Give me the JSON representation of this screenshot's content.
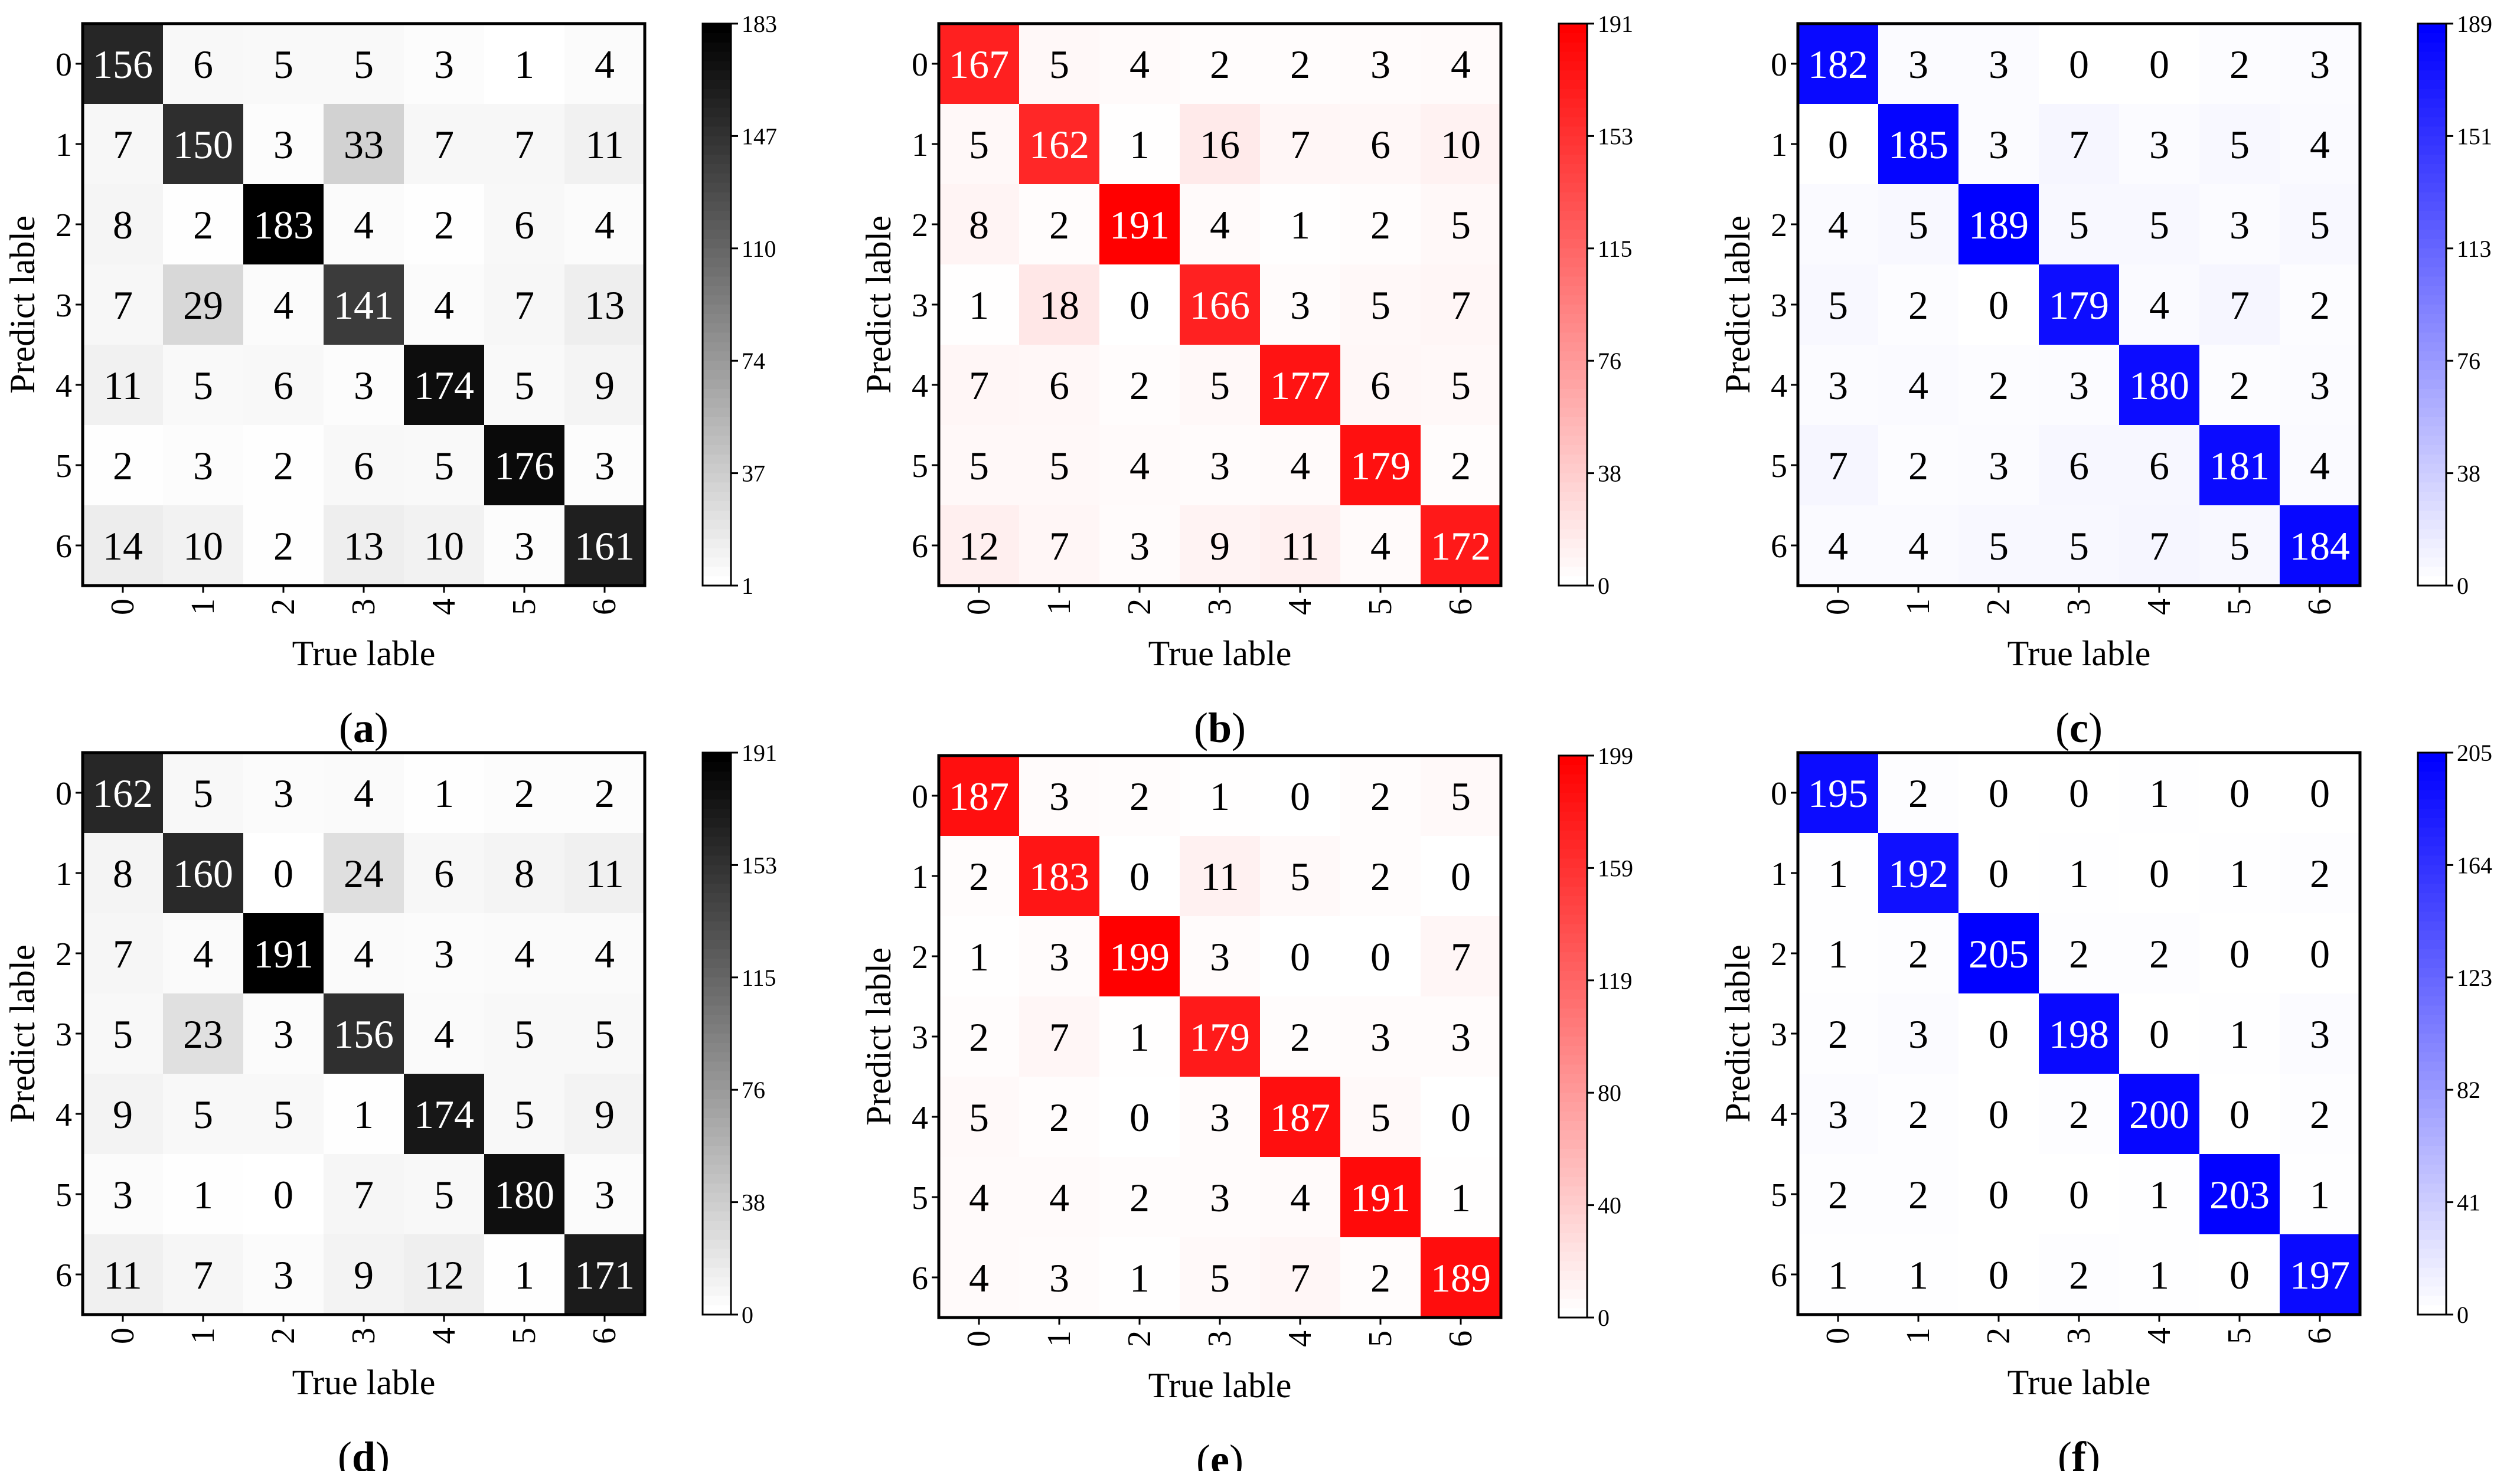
{
  "chart_data": [
    {
      "type": "heatmap",
      "panel": "a",
      "colormap": "gray",
      "accent": "#000000",
      "xlabel": "True lable",
      "ylabel": "Predict lable",
      "categories": [
        "0",
        "1",
        "2",
        "3",
        "4",
        "5",
        "6"
      ],
      "colorbar_ticks": [
        "183",
        "147",
        "110",
        "74",
        "37",
        "1"
      ],
      "vmin": 1,
      "vmax": 183,
      "matrix": [
        [
          156,
          6,
          5,
          5,
          3,
          1,
          4
        ],
        [
          7,
          150,
          3,
          33,
          7,
          7,
          11
        ],
        [
          8,
          2,
          183,
          4,
          2,
          6,
          4
        ],
        [
          7,
          29,
          4,
          141,
          4,
          7,
          13
        ],
        [
          11,
          5,
          6,
          3,
          174,
          5,
          9
        ],
        [
          2,
          3,
          2,
          6,
          5,
          176,
          3
        ],
        [
          14,
          10,
          2,
          13,
          10,
          3,
          161
        ]
      ]
    },
    {
      "type": "heatmap",
      "panel": "b",
      "colormap": "red",
      "accent": "#ff0000",
      "xlabel": "True lable",
      "ylabel": "Predict lable",
      "categories": [
        "0",
        "1",
        "2",
        "3",
        "4",
        "5",
        "6"
      ],
      "colorbar_ticks": [
        "191",
        "153",
        "115",
        "76",
        "38",
        "0"
      ],
      "vmin": 0,
      "vmax": 191,
      "matrix": [
        [
          167,
          5,
          4,
          2,
          2,
          3,
          4
        ],
        [
          5,
          162,
          1,
          16,
          7,
          6,
          10
        ],
        [
          8,
          2,
          191,
          4,
          1,
          2,
          5
        ],
        [
          1,
          18,
          0,
          166,
          3,
          5,
          7
        ],
        [
          7,
          6,
          2,
          5,
          177,
          6,
          5
        ],
        [
          5,
          5,
          4,
          3,
          4,
          179,
          2
        ],
        [
          12,
          7,
          3,
          9,
          11,
          4,
          172
        ]
      ]
    },
    {
      "type": "heatmap",
      "panel": "c",
      "colormap": "blue",
      "accent": "#0000ff",
      "xlabel": "True lable",
      "ylabel": "Predict lable",
      "categories": [
        "0",
        "1",
        "2",
        "3",
        "4",
        "5",
        "6"
      ],
      "colorbar_ticks": [
        "189",
        "151",
        "113",
        "76",
        "38",
        "0"
      ],
      "vmin": 0,
      "vmax": 189,
      "matrix": [
        [
          182,
          3,
          3,
          0,
          0,
          2,
          3
        ],
        [
          0,
          185,
          3,
          7,
          3,
          5,
          4
        ],
        [
          4,
          5,
          189,
          5,
          5,
          3,
          5
        ],
        [
          5,
          2,
          0,
          179,
          4,
          7,
          2
        ],
        [
          3,
          4,
          2,
          3,
          180,
          2,
          3
        ],
        [
          7,
          2,
          3,
          6,
          6,
          181,
          4
        ],
        [
          4,
          4,
          5,
          5,
          7,
          5,
          184
        ]
      ]
    },
    {
      "type": "heatmap",
      "panel": "d",
      "colormap": "gray",
      "accent": "#000000",
      "xlabel": "True lable",
      "ylabel": "Predict lable",
      "categories": [
        "0",
        "1",
        "2",
        "3",
        "4",
        "5",
        "6"
      ],
      "colorbar_ticks": [
        "191",
        "153",
        "115",
        "76",
        "38",
        "0"
      ],
      "vmin": 0,
      "vmax": 191,
      "matrix": [
        [
          162,
          5,
          3,
          4,
          1,
          2,
          2
        ],
        [
          8,
          160,
          0,
          24,
          6,
          8,
          11
        ],
        [
          7,
          4,
          191,
          4,
          3,
          4,
          4
        ],
        [
          5,
          23,
          3,
          156,
          4,
          5,
          5
        ],
        [
          9,
          5,
          5,
          1,
          174,
          5,
          9
        ],
        [
          3,
          1,
          0,
          7,
          5,
          180,
          3
        ],
        [
          11,
          7,
          3,
          9,
          12,
          1,
          171
        ]
      ]
    },
    {
      "type": "heatmap",
      "panel": "e",
      "colormap": "red",
      "accent": "#ff0000",
      "xlabel": "True lable",
      "ylabel": "Predict lable",
      "categories": [
        "0",
        "1",
        "2",
        "3",
        "4",
        "5",
        "6"
      ],
      "colorbar_ticks": [
        "199",
        "159",
        "119",
        "80",
        "40",
        "0"
      ],
      "vmin": 0,
      "vmax": 199,
      "matrix": [
        [
          187,
          3,
          2,
          1,
          0,
          2,
          5
        ],
        [
          2,
          183,
          0,
          11,
          5,
          2,
          0
        ],
        [
          1,
          3,
          199,
          3,
          0,
          0,
          7
        ],
        [
          2,
          7,
          1,
          179,
          2,
          3,
          3
        ],
        [
          5,
          2,
          0,
          3,
          187,
          5,
          0
        ],
        [
          4,
          4,
          2,
          3,
          4,
          191,
          1
        ],
        [
          4,
          3,
          1,
          5,
          7,
          2,
          189
        ]
      ]
    },
    {
      "type": "heatmap",
      "panel": "f",
      "colormap": "blue",
      "accent": "#0000ff",
      "xlabel": "True lable",
      "ylabel": "Predict lable",
      "categories": [
        "0",
        "1",
        "2",
        "3",
        "4",
        "5",
        "6"
      ],
      "colorbar_ticks": [
        "205",
        "164",
        "123",
        "82",
        "41",
        "0"
      ],
      "vmin": 0,
      "vmax": 205,
      "matrix": [
        [
          195,
          2,
          0,
          0,
          1,
          0,
          0
        ],
        [
          1,
          192,
          0,
          1,
          0,
          1,
          2
        ],
        [
          1,
          2,
          205,
          2,
          2,
          0,
          0
        ],
        [
          2,
          3,
          0,
          198,
          0,
          1,
          3
        ],
        [
          3,
          2,
          0,
          2,
          200,
          0,
          2
        ],
        [
          2,
          2,
          0,
          0,
          1,
          203,
          1
        ],
        [
          1,
          1,
          0,
          2,
          1,
          0,
          197
        ]
      ]
    }
  ]
}
